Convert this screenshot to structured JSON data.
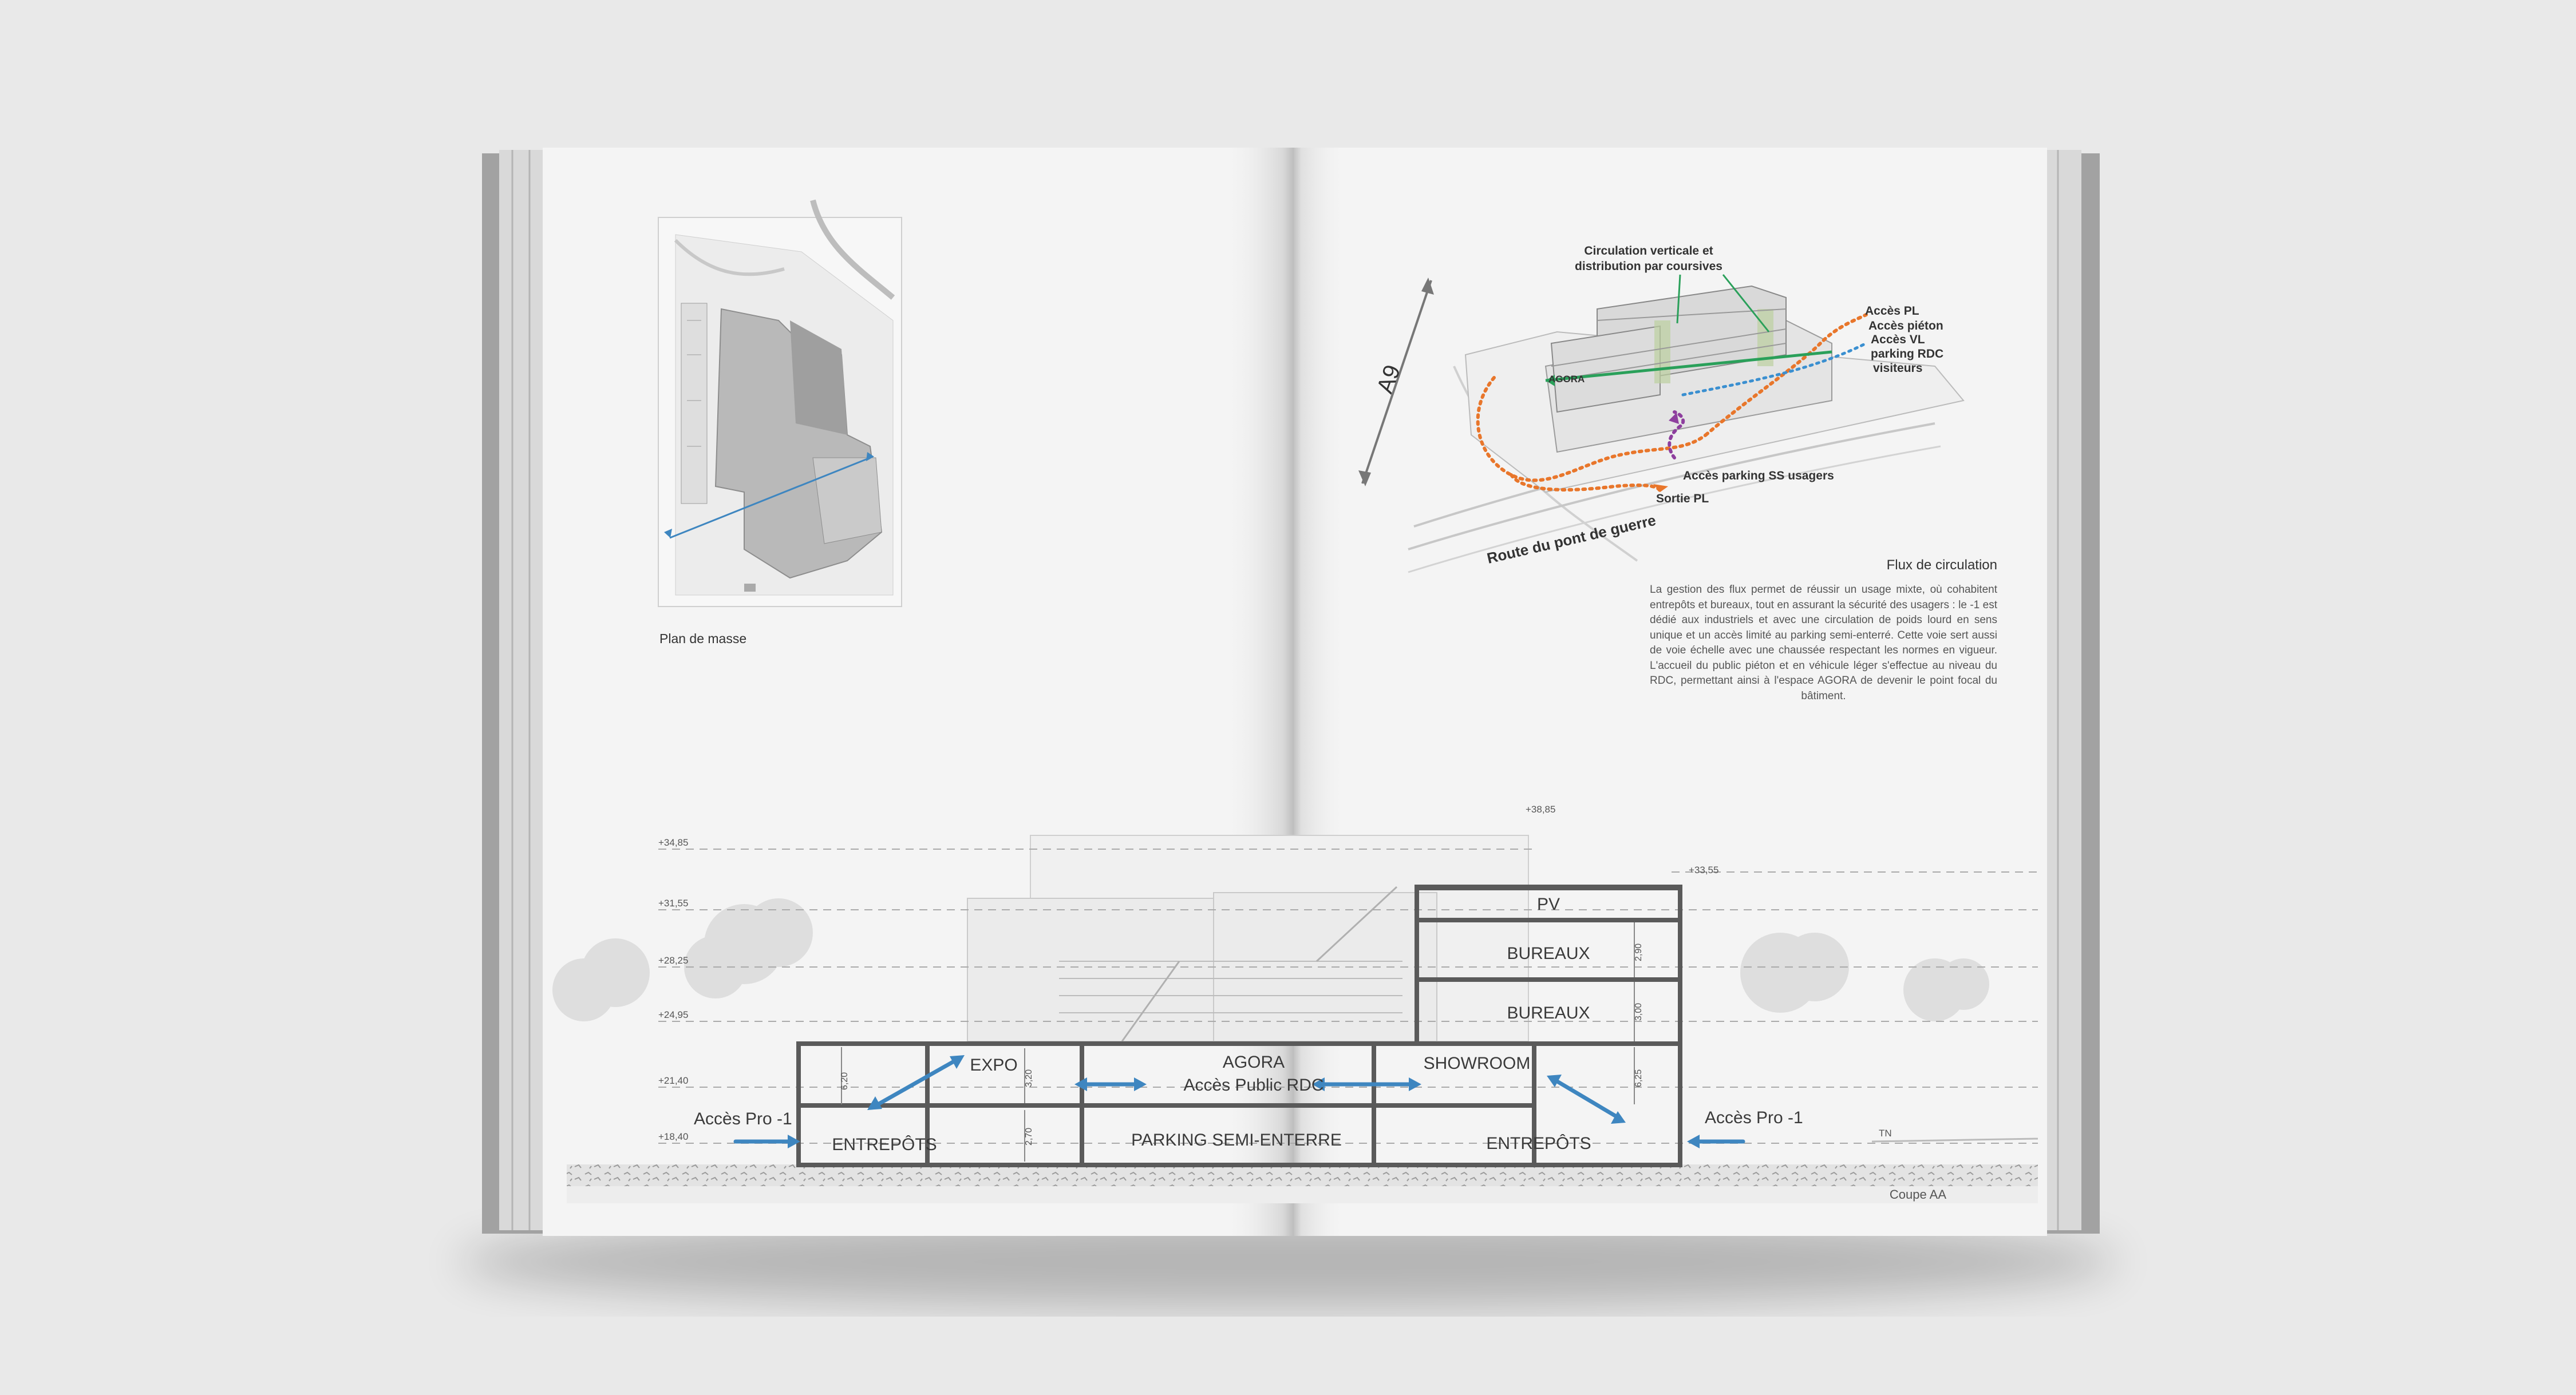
{
  "left_page": {
    "plan_caption": "Plan de masse",
    "section": {
      "elevations": [
        "+34,85",
        "+31,55",
        "+28,25",
        "+24,95",
        "+21,40",
        "+18,40"
      ],
      "rooms": {
        "expo": "EXPO",
        "agora": "AGORA",
        "agora_sub": "Accès Public RDC",
        "entrepots_left": "ENTREPÔTS",
        "parking": "PARKING SEMI-ENTERRE"
      },
      "access_left": "Accès Pro -1",
      "dims": [
        "6,20",
        "3,20",
        "2,70"
      ]
    }
  },
  "right_page": {
    "axo_labels": {
      "circulation_line1": "Circulation verticale et",
      "circulation_line2": "distribution par coursives",
      "acces_pl": "Accès PL",
      "acces_pieton": "Accès piéton",
      "acces_vl_1": "Accès VL",
      "acces_vl_2": "parking RDC",
      "acces_vl_3": "visiteurs",
      "agora": "AGORA",
      "acces_parking_ss": "Accès parking SS usagers",
      "sortie_pl": "Sortie PL",
      "road_a9": "A9",
      "road_pont": "Route du pont de guerre"
    },
    "flux_title": "Flux de circulation",
    "flux_body": "La gestion des flux permet de réussir un usage mixte, où cohabitent entrepôts et bureaux, tout en assurant la sécurité des usagers : le -1 est dédié aux industriels et avec une circulation de poids lourd en sens unique et un accès limité au parking semi-enterré. Cette voie sert aussi de voie échelle avec une chaussée respectant les normes en vigueur. L'accueil du public piéton et en véhicule léger s'effectue au niveau du RDC, permettant ainsi à l'espace AGORA de devenir le point focal du bâtiment.",
    "section": {
      "elevations": [
        "+38,85",
        "+33,55"
      ],
      "rooms": {
        "pv": "PV",
        "bureaux_1": "BUREAUX",
        "bureaux_2": "BUREAUX",
        "showroom": "SHOWROOM",
        "entrepots_right": "ENTREPÔTS"
      },
      "access_right": "Accès Pro -1",
      "tn": "TN",
      "dims": [
        "2,90",
        "3,00",
        "6,25"
      ]
    },
    "coupe_caption": "Coupe AA"
  },
  "colors": {
    "background": "#e9e9e9",
    "page": "#f4f4f4",
    "arrow_blue": "#3e86c0",
    "green": "#2aa05a",
    "orange": "#e8762b",
    "blue_label": "#3a8fd0",
    "purple": "#8e3f9e"
  }
}
